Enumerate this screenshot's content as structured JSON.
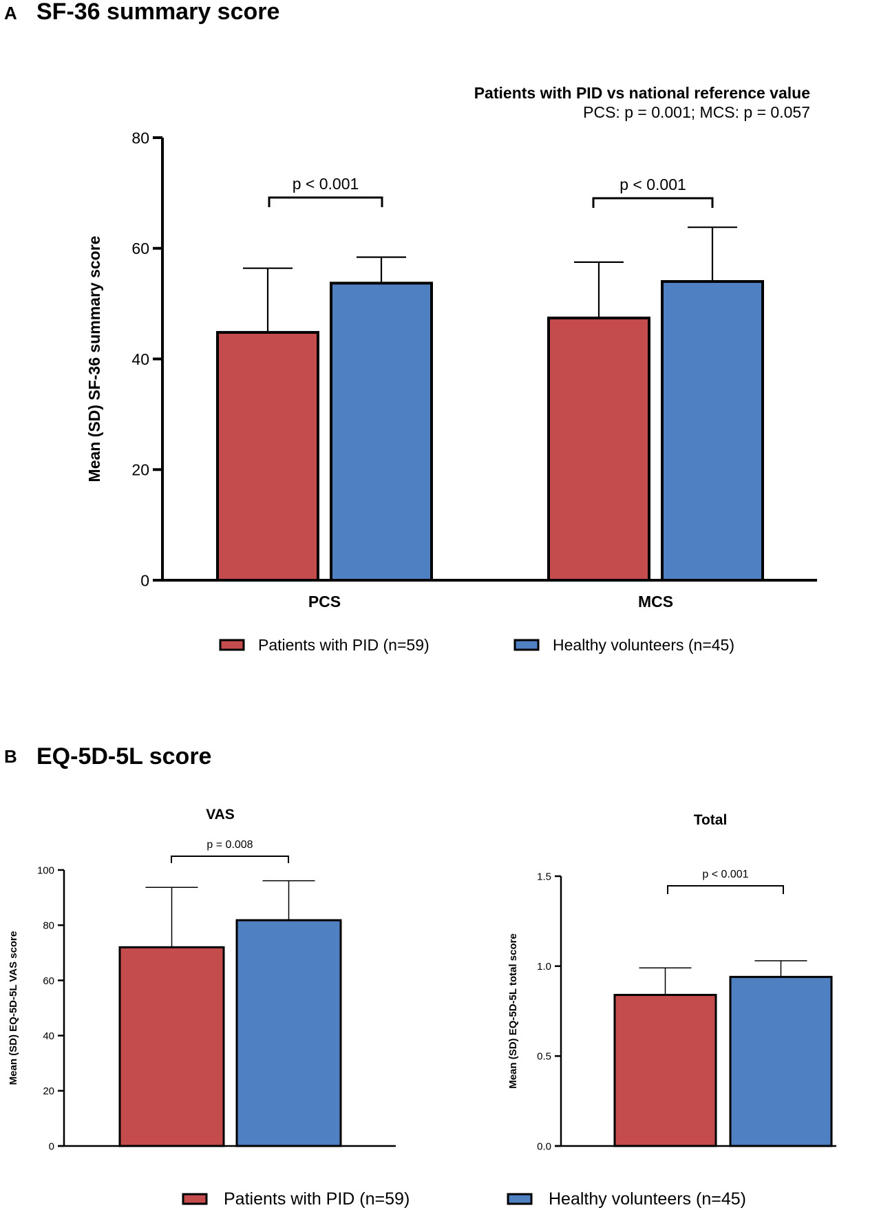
{
  "colors": {
    "pid": "#C44C4C",
    "healthy": "#4E80C2",
    "axis": "#000000"
  },
  "panel_a": {
    "letter": "A",
    "title": "SF-36 summary score"
  },
  "panel_b": {
    "letter": "B",
    "title": "EQ-5D-5L score"
  },
  "chart_data": [
    {
      "id": "sf36",
      "type": "bar",
      "title": "SF-36 summary score",
      "annotation_title": "Patients with PID vs national reference value",
      "annotation_text": "PCS: p = 0.001; MCS: p = 0.057",
      "xlabel": "",
      "ylabel": "Mean (SD) SF-36 summary score",
      "ylim": [
        0,
        80
      ],
      "yticks": [
        0,
        20,
        40,
        60,
        80
      ],
      "tick_labels": [
        "0",
        "20",
        "40",
        "60",
        "80"
      ],
      "categories": [
        "PCS",
        "MCS"
      ],
      "series": [
        {
          "name": "Patients with PID (n=59)",
          "values": [
            44.8,
            47.4
          ],
          "sd": [
            11.6,
            10.1
          ]
        },
        {
          "name": "Healthy volunteers (n=45)",
          "values": [
            53.7,
            54.0
          ],
          "sd": [
            4.7,
            9.8
          ]
        }
      ],
      "comparisons": [
        {
          "category": "PCS",
          "label": "p < 0.001"
        },
        {
          "category": "MCS",
          "label": "p < 0.001"
        }
      ],
      "legend_position": "bottom"
    },
    {
      "id": "vas",
      "type": "bar",
      "title": "VAS",
      "xlabel": "",
      "ylabel": "Mean (SD) EQ-5D-5L VAS score",
      "ylim": [
        0,
        100
      ],
      "yticks": [
        0,
        20,
        40,
        60,
        80,
        100
      ],
      "tick_labels": [
        "0",
        "20",
        "40",
        "60",
        "80",
        "100"
      ],
      "categories": [
        "VAS"
      ],
      "series": [
        {
          "name": "Patients with PID (n=59)",
          "values": [
            72.0
          ],
          "sd": [
            21.7
          ]
        },
        {
          "name": "Healthy volunteers (n=45)",
          "values": [
            81.8
          ],
          "sd": [
            14.3
          ]
        }
      ],
      "comparisons": [
        {
          "category": "VAS",
          "label": "p = 0.008"
        }
      ],
      "legend_position": "bottom"
    },
    {
      "id": "total",
      "type": "bar",
      "title": "Total",
      "xlabel": "",
      "ylabel": "Mean (SD) EQ-5D-5L total score",
      "ylim": [
        0,
        1.5
      ],
      "yticks": [
        0,
        0.5,
        1.0,
        1.5
      ],
      "tick_labels": [
        "0.0",
        "0.5",
        "1.0",
        "1.5"
      ],
      "categories": [
        "Total"
      ],
      "series": [
        {
          "name": "Patients with PID (n=59)",
          "values": [
            0.84
          ],
          "sd": [
            0.15
          ]
        },
        {
          "name": "Healthy volunteers (n=45)",
          "values": [
            0.94
          ],
          "sd": [
            0.09
          ]
        }
      ],
      "comparisons": [
        {
          "category": "Total",
          "label": "p < 0.001"
        }
      ],
      "legend_position": "bottom"
    }
  ],
  "legend": {
    "top": [
      {
        "label": "Patients with PID (n=59)"
      },
      {
        "label": "Healthy volunteers (n=45)"
      }
    ],
    "bottom": [
      {
        "label": "Patients with PID (n=59)"
      },
      {
        "label": "Healthy volunteers (n=45)"
      }
    ]
  }
}
